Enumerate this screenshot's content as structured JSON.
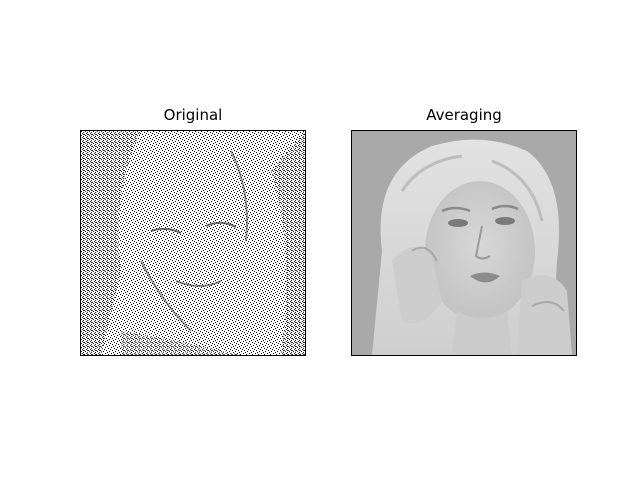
{
  "panels": [
    {
      "title": "Original"
    },
    {
      "title": "Averaging"
    }
  ]
}
